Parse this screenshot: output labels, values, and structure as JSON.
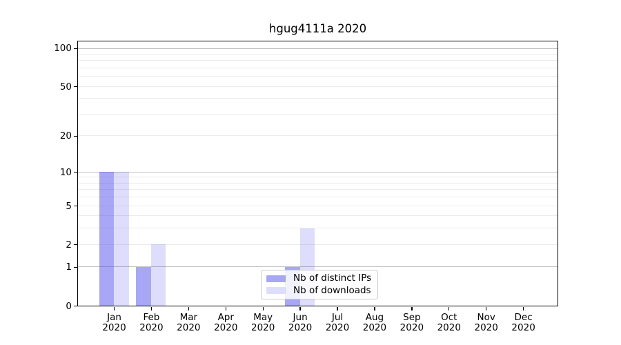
{
  "chart_data": {
    "type": "bar",
    "title": "hgug4111a 2020",
    "scale": "log1p",
    "categories": [
      "Jan",
      "Feb",
      "Mar",
      "Apr",
      "May",
      "Jun",
      "Jul",
      "Aug",
      "Sep",
      "Oct",
      "Nov",
      "Dec"
    ],
    "category_year": "2020",
    "series": [
      {
        "name": "Nb of distinct IPs",
        "color": "rgba(60,60,235,0.45)",
        "values": [
          10,
          1,
          0,
          0,
          0,
          1,
          0,
          0,
          0,
          0,
          0,
          0
        ]
      },
      {
        "name": "Nb of downloads",
        "color": "rgba(60,60,235,0.17)",
        "values": [
          10,
          2,
          0,
          0,
          0,
          3,
          0,
          0,
          0,
          0,
          0,
          0
        ]
      }
    ],
    "xlabel": "",
    "ylabel": "",
    "y_ticks": [
      0,
      1,
      2,
      5,
      10,
      20,
      50,
      100
    ],
    "grid_major": [
      1,
      10,
      100
    ],
    "grid_minor": [
      2,
      3,
      4,
      5,
      6,
      7,
      8,
      9,
      20,
      30,
      40,
      50,
      60,
      70,
      80,
      90
    ],
    "ylim": [
      0,
      114
    ],
    "grid": true,
    "legend_position": "inside lower center"
  },
  "colors": {
    "minor_grid": "#ebebeb",
    "major_grid": "#c0c0c0",
    "axis": "#000000",
    "legend_border": "#cccccc",
    "background": "#ffffff"
  }
}
